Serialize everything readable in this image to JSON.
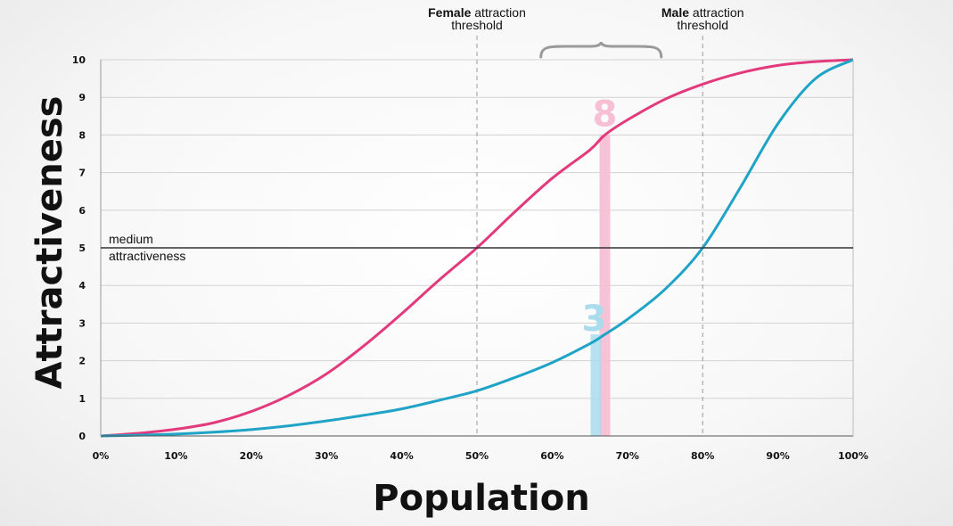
{
  "chart_data": {
    "type": "line",
    "ylabel": "Attractiveness",
    "xlabel": "Population",
    "xlim": [
      0,
      100
    ],
    "ylim": [
      0,
      10
    ],
    "x_ticks": [
      "0%",
      "10%",
      "20%",
      "30%",
      "40%",
      "50%",
      "60%",
      "70%",
      "80%",
      "90%",
      "100%"
    ],
    "y_ticks": [
      "0",
      "1",
      "2",
      "3",
      "4",
      "5",
      "6",
      "7",
      "8",
      "9",
      "10"
    ],
    "grid": true,
    "series": [
      {
        "color": "#e23a7c",
        "x": [
          0,
          5,
          10,
          15,
          20,
          25,
          30,
          35,
          40,
          45,
          50,
          55,
          60,
          65,
          67,
          70,
          75,
          80,
          85,
          90,
          95,
          100
        ],
        "values": [
          0,
          0.07,
          0.18,
          0.35,
          0.65,
          1.08,
          1.65,
          2.4,
          3.25,
          4.15,
          5.0,
          5.95,
          6.85,
          7.6,
          8.0,
          8.4,
          8.95,
          9.35,
          9.65,
          9.85,
          9.95,
          10.0
        ]
      },
      {
        "color": "#1fa3c6",
        "x": [
          0,
          5,
          10,
          15,
          20,
          25,
          30,
          35,
          40,
          45,
          50,
          55,
          60,
          65,
          67,
          70,
          75,
          80,
          85,
          90,
          95,
          100
        ],
        "values": [
          0,
          0.02,
          0.05,
          0.1,
          0.17,
          0.27,
          0.4,
          0.55,
          0.72,
          0.95,
          1.2,
          1.55,
          1.95,
          2.45,
          2.7,
          3.1,
          3.9,
          5.0,
          6.6,
          8.3,
          9.5,
          10.0
        ]
      }
    ],
    "reference_line": {
      "y": 5,
      "label_line1": "medium",
      "label_line2": "attractiveness"
    },
    "thresholds": [
      {
        "x": 50,
        "label_bold": "Female",
        "label_rest": " attraction",
        "label_line2": "threshold"
      },
      {
        "x": 80,
        "label_bold": "Male",
        "label_rest": " attraction",
        "label_line2": "threshold"
      }
    ],
    "highlight": {
      "x": 67,
      "pink_value": 8,
      "pink_label": "8",
      "blue_value": 2.7,
      "blue_label": "3",
      "pink_color": "#f7bfd3",
      "blue_color": "#a9dced"
    },
    "brace": {
      "x_start": 58.5,
      "x_end": 74.5
    }
  }
}
